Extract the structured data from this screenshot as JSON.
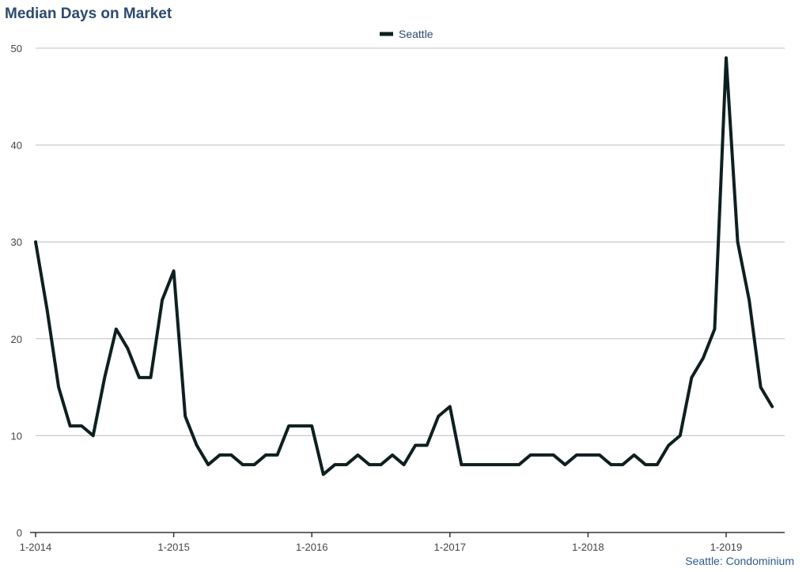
{
  "chart_data": {
    "type": "line",
    "title": "Median Days on Market",
    "footer": "Seattle: Condominium",
    "legend_position": "top-center",
    "grid": true,
    "ylim": [
      0,
      50
    ],
    "yticks": [
      "0",
      "10",
      "20",
      "30",
      "40",
      "50"
    ],
    "xticks": [
      "1-2014",
      "1-2015",
      "1-2016",
      "1-2017",
      "1-2018",
      "1-2019"
    ],
    "colors": {
      "line": "#0f1f1f",
      "title": "#2c4a6e",
      "grid": "#bfbfbf"
    },
    "series": [
      {
        "name": "Seattle",
        "x": [
          "2014-01",
          "2014-02",
          "2014-03",
          "2014-04",
          "2014-05",
          "2014-06",
          "2014-07",
          "2014-08",
          "2014-09",
          "2014-10",
          "2014-11",
          "2014-12",
          "2015-01",
          "2015-02",
          "2015-03",
          "2015-04",
          "2015-05",
          "2015-06",
          "2015-07",
          "2015-08",
          "2015-09",
          "2015-10",
          "2015-11",
          "2015-12",
          "2016-01",
          "2016-02",
          "2016-03",
          "2016-04",
          "2016-05",
          "2016-06",
          "2016-07",
          "2016-08",
          "2016-09",
          "2016-10",
          "2016-11",
          "2016-12",
          "2017-01",
          "2017-02",
          "2017-03",
          "2017-04",
          "2017-05",
          "2017-06",
          "2017-07",
          "2017-08",
          "2017-09",
          "2017-10",
          "2017-11",
          "2017-12",
          "2018-01",
          "2018-02",
          "2018-03",
          "2018-04",
          "2018-05",
          "2018-06",
          "2018-07",
          "2018-08",
          "2018-09",
          "2018-10",
          "2018-11",
          "2018-12",
          "2019-01",
          "2019-02",
          "2019-03",
          "2019-04",
          "2019-05"
        ],
        "values": [
          30,
          23,
          15,
          11,
          11,
          10,
          16,
          21,
          19,
          16,
          16,
          24,
          27,
          12,
          9,
          7,
          8,
          8,
          7,
          7,
          8,
          8,
          11,
          11,
          11,
          6,
          7,
          7,
          8,
          7,
          7,
          8,
          7,
          9,
          9,
          12,
          13,
          7,
          7,
          7,
          7,
          7,
          7,
          8,
          8,
          8,
          7,
          8,
          8,
          8,
          7,
          7,
          8,
          7,
          7,
          9,
          10,
          16,
          18,
          21,
          49,
          30,
          24,
          15,
          13
        ]
      }
    ]
  }
}
